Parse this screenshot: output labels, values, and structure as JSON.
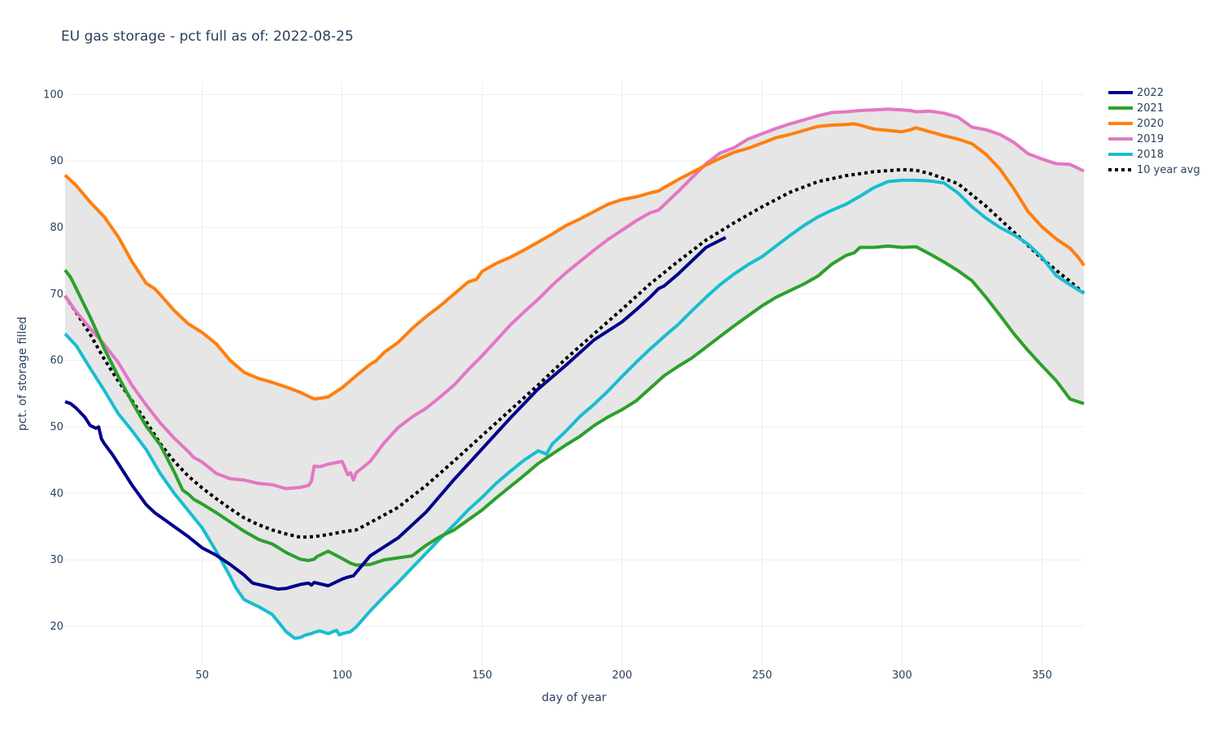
{
  "chart_data": {
    "type": "line",
    "title": "EU gas storage - pct full as of: 2022-08-25",
    "xlabel": "day of year",
    "ylabel": "pct. of storage filled",
    "xlim": [
      1,
      365
    ],
    "ylim": [
      14,
      102
    ],
    "xticks": [
      50,
      100,
      150,
      200,
      250,
      300,
      350
    ],
    "yticks": [
      20,
      30,
      40,
      50,
      60,
      70,
      80,
      90,
      100
    ],
    "grid": true,
    "legend_position": "top-right",
    "band": {
      "description": "min-max range across years",
      "color": "#e6e6e6"
    },
    "series": [
      {
        "name": "2022",
        "color": "#00008b",
        "dash": "solid",
        "x": [
          1,
          3,
          5,
          8,
          10,
          12,
          13,
          14,
          15,
          18,
          20,
          25,
          30,
          33,
          37,
          40,
          45,
          50,
          55,
          60,
          65,
          68,
          72,
          77,
          80,
          85,
          88,
          89,
          90,
          95,
          100,
          102,
          104,
          110,
          120,
          130,
          140,
          150,
          160,
          170,
          180,
          190,
          200,
          205,
          210,
          213,
          215,
          220,
          225,
          230,
          237
        ],
        "y": [
          53.8,
          53.5,
          52.8,
          51.5,
          50.2,
          49.8,
          50,
          48.2,
          47.5,
          45.8,
          44.5,
          41.2,
          38.3,
          37.1,
          35.9,
          35,
          33.5,
          31.8,
          30.7,
          29.3,
          27.7,
          26.5,
          26.1,
          25.6,
          25.7,
          26.3,
          26.5,
          26.2,
          26.6,
          26.1,
          27.1,
          27.4,
          27.6,
          30.6,
          33.3,
          37.2,
          42.1,
          46.7,
          51.3,
          55.7,
          59.3,
          63.1,
          65.8,
          67.6,
          69.5,
          70.8,
          71.2,
          73,
          75,
          77,
          78.5
        ]
      },
      {
        "name": "2021",
        "color": "#2ca02c",
        "dash": "solid",
        "x": [
          1,
          3,
          5,
          10,
          15,
          20,
          25,
          30,
          35,
          40,
          43,
          45,
          47,
          50,
          55,
          60,
          65,
          70,
          72,
          75,
          80,
          85,
          88,
          90,
          91,
          95,
          100,
          103,
          105,
          110,
          115,
          120,
          125,
          130,
          135,
          140,
          145,
          150,
          155,
          160,
          165,
          170,
          175,
          180,
          185,
          190,
          195,
          200,
          205,
          210,
          215,
          220,
          225,
          230,
          235,
          240,
          245,
          250,
          255,
          260,
          265,
          270,
          275,
          280,
          283,
          285,
          290,
          295,
          300,
          305,
          310,
          315,
          320,
          325,
          330,
          335,
          340,
          345,
          350,
          355,
          360,
          365
        ],
        "y": [
          73.6,
          72.5,
          70.8,
          66.5,
          61.8,
          57.6,
          53.7,
          50.1,
          47.3,
          43.2,
          40.5,
          39.9,
          39.1,
          38.4,
          37.1,
          35.7,
          34.3,
          33.1,
          32.8,
          32.4,
          31.1,
          30.1,
          29.9,
          30.1,
          30.5,
          31.3,
          30.2,
          29.5,
          29.2,
          29.3,
          30,
          30.3,
          30.6,
          32.2,
          33.5,
          34.5,
          36,
          37.5,
          39.3,
          41,
          42.7,
          44.5,
          45.9,
          47.3,
          48.6,
          50.2,
          51.5,
          52.6,
          53.9,
          55.8,
          57.7,
          59.1,
          60.4,
          62,
          63.6,
          65.2,
          66.7,
          68.2,
          69.5,
          70.5,
          71.5,
          72.7,
          74.5,
          75.8,
          76.2,
          77,
          77,
          77.2,
          77,
          77.1,
          76,
          74.8,
          73.5,
          72,
          69.5,
          66.8,
          64,
          61.5,
          59.2,
          57,
          54.2,
          53.5
        ]
      },
      {
        "name": "2020",
        "color": "#ff7f0e",
        "dash": "solid",
        "x": [
          1,
          5,
          10,
          15,
          20,
          25,
          30,
          33,
          35,
          40,
          45,
          50,
          55,
          60,
          65,
          70,
          75,
          80,
          85,
          90,
          95,
          100,
          105,
          110,
          112,
          115,
          120,
          125,
          130,
          135,
          140,
          145,
          148,
          150,
          155,
          160,
          165,
          170,
          175,
          180,
          185,
          190,
          195,
          200,
          205,
          210,
          213,
          215,
          220,
          225,
          230,
          235,
          240,
          245,
          250,
          255,
          260,
          265,
          270,
          275,
          280,
          283,
          285,
          290,
          295,
          300,
          303,
          305,
          310,
          315,
          320,
          325,
          330,
          335,
          340,
          345,
          350,
          355,
          360,
          363,
          365
        ],
        "y": [
          87.9,
          86.3,
          83.8,
          81.6,
          78.6,
          74.8,
          71.6,
          70.8,
          69.9,
          67.5,
          65.5,
          64.2,
          62.5,
          60,
          58.2,
          57.3,
          56.7,
          56,
          55.2,
          54.2,
          54.5,
          55.9,
          57.7,
          59.4,
          59.9,
          61.2,
          62.7,
          64.8,
          66.6,
          68.2,
          70,
          71.8,
          72.2,
          73.4,
          74.6,
          75.5,
          76.6,
          77.8,
          79,
          80.3,
          81.3,
          82.4,
          83.5,
          84.2,
          84.6,
          85.2,
          85.5,
          86,
          87.2,
          88.3,
          89.4,
          90.4,
          91.3,
          91.9,
          92.7,
          93.5,
          94,
          94.6,
          95.2,
          95.4,
          95.5,
          95.6,
          95.4,
          94.8,
          94.6,
          94.4,
          94.7,
          95,
          94.4,
          93.8,
          93.3,
          92.6,
          91,
          88.8,
          85.8,
          82.4,
          80.1,
          78.3,
          76.9,
          75.5,
          74.3
        ]
      },
      {
        "name": "2019",
        "color": "#e377c2",
        "dash": "solid",
        "x": [
          1,
          5,
          10,
          15,
          20,
          25,
          30,
          35,
          40,
          45,
          47,
          50,
          55,
          60,
          65,
          70,
          75,
          80,
          85,
          88,
          89,
          90,
          92,
          95,
          100,
          102,
          103,
          104,
          105,
          110,
          115,
          120,
          125,
          130,
          135,
          140,
          145,
          150,
          155,
          160,
          165,
          170,
          175,
          180,
          185,
          190,
          195,
          200,
          205,
          210,
          213,
          215,
          220,
          225,
          230,
          235,
          240,
          245,
          250,
          255,
          260,
          265,
          270,
          275,
          280,
          285,
          290,
          295,
          300,
          303,
          305,
          310,
          315,
          320,
          325,
          330,
          335,
          340,
          345,
          350,
          355,
          360,
          365
        ],
        "y": [
          69.7,
          67.3,
          64.8,
          62.4,
          59.7,
          56.2,
          53.3,
          50.6,
          48.3,
          46.3,
          45.4,
          44.7,
          43,
          42.2,
          42,
          41.5,
          41.3,
          40.7,
          40.9,
          41.2,
          41.8,
          44.1,
          44,
          44.4,
          44.8,
          42.8,
          43.1,
          42,
          43.1,
          44.8,
          47.6,
          49.9,
          51.5,
          52.8,
          54.5,
          56.3,
          58.6,
          60.7,
          63,
          65.3,
          67.3,
          69.2,
          71.3,
          73.2,
          74.9,
          76.6,
          78.2,
          79.6,
          81,
          82.2,
          82.6,
          83.4,
          85.4,
          87.5,
          89.6,
          91.2,
          92,
          93.3,
          94.1,
          94.9,
          95.6,
          96.2,
          96.8,
          97.3,
          97.4,
          97.6,
          97.7,
          97.8,
          97.7,
          97.6,
          97.4,
          97.5,
          97.2,
          96.6,
          95.1,
          94.7,
          94,
          92.8,
          91.1,
          90.3,
          89.6,
          89.5,
          88.5
        ]
      },
      {
        "name": "2018",
        "color": "#17becf",
        "dash": "solid",
        "x": [
          1,
          5,
          10,
          15,
          20,
          25,
          30,
          35,
          40,
          45,
          50,
          55,
          60,
          62,
          65,
          70,
          75,
          80,
          83,
          85,
          87,
          89,
          90,
          92,
          95,
          98,
          99,
          100,
          103,
          105,
          110,
          115,
          120,
          125,
          130,
          135,
          140,
          145,
          150,
          155,
          160,
          165,
          170,
          173,
          175,
          180,
          185,
          190,
          195,
          200,
          205,
          210,
          215,
          220,
          225,
          230,
          235,
          240,
          245,
          250,
          255,
          260,
          265,
          270,
          275,
          280,
          285,
          290,
          295,
          300,
          305,
          310,
          315,
          320,
          325,
          330,
          335,
          340,
          345,
          350,
          355,
          360,
          365
        ],
        "y": [
          64,
          62.2,
          58.8,
          55.5,
          52,
          49.4,
          46.6,
          43,
          40,
          37.4,
          34.8,
          31.3,
          27.5,
          25.8,
          24,
          23,
          21.8,
          19.2,
          18.2,
          18.3,
          18.7,
          18.9,
          19.1,
          19.3,
          18.9,
          19.4,
          18.7,
          18.9,
          19.2,
          19.9,
          22.3,
          24.5,
          26.6,
          28.8,
          31,
          33.2,
          35.3,
          37.5,
          39.4,
          41.5,
          43.3,
          45,
          46.4,
          45.9,
          47.4,
          49.4,
          51.6,
          53.4,
          55.4,
          57.6,
          59.7,
          61.7,
          63.6,
          65.4,
          67.5,
          69.5,
          71.4,
          73,
          74.4,
          75.6,
          77.2,
          78.8,
          80.3,
          81.6,
          82.6,
          83.5,
          84.7,
          86,
          86.9,
          87.1,
          87.1,
          87,
          86.7,
          85.2,
          83.1,
          81.4,
          80,
          78.9,
          77.5,
          75.5,
          72.8,
          71.4,
          70.1
        ]
      },
      {
        "name": "10 year avg",
        "color": "#000000",
        "dash": "dot",
        "x": [
          1,
          5,
          10,
          15,
          20,
          25,
          30,
          35,
          40,
          45,
          50,
          55,
          60,
          65,
          70,
          75,
          80,
          85,
          90,
          95,
          100,
          105,
          110,
          120,
          130,
          140,
          150,
          160,
          170,
          180,
          190,
          200,
          210,
          220,
          230,
          240,
          250,
          260,
          270,
          280,
          290,
          300,
          305,
          310,
          320,
          330,
          340,
          350,
          360,
          365
        ],
        "y": [
          69.7,
          67.2,
          63.9,
          60.2,
          56.9,
          53.9,
          50.8,
          47.5,
          44.8,
          42.6,
          40.8,
          39.2,
          37.7,
          36.3,
          35.3,
          34.5,
          33.9,
          33.4,
          33.5,
          33.8,
          34.2,
          34.5,
          35.6,
          37.9,
          41.2,
          44.9,
          48.7,
          52.5,
          56.3,
          60.3,
          64,
          67.7,
          71.5,
          74.9,
          78.1,
          80.7,
          83.1,
          85.3,
          86.9,
          87.8,
          88.4,
          88.7,
          88.6,
          88.1,
          86.6,
          83.2,
          79.3,
          75.3,
          71.9,
          70.1
        ]
      }
    ]
  }
}
